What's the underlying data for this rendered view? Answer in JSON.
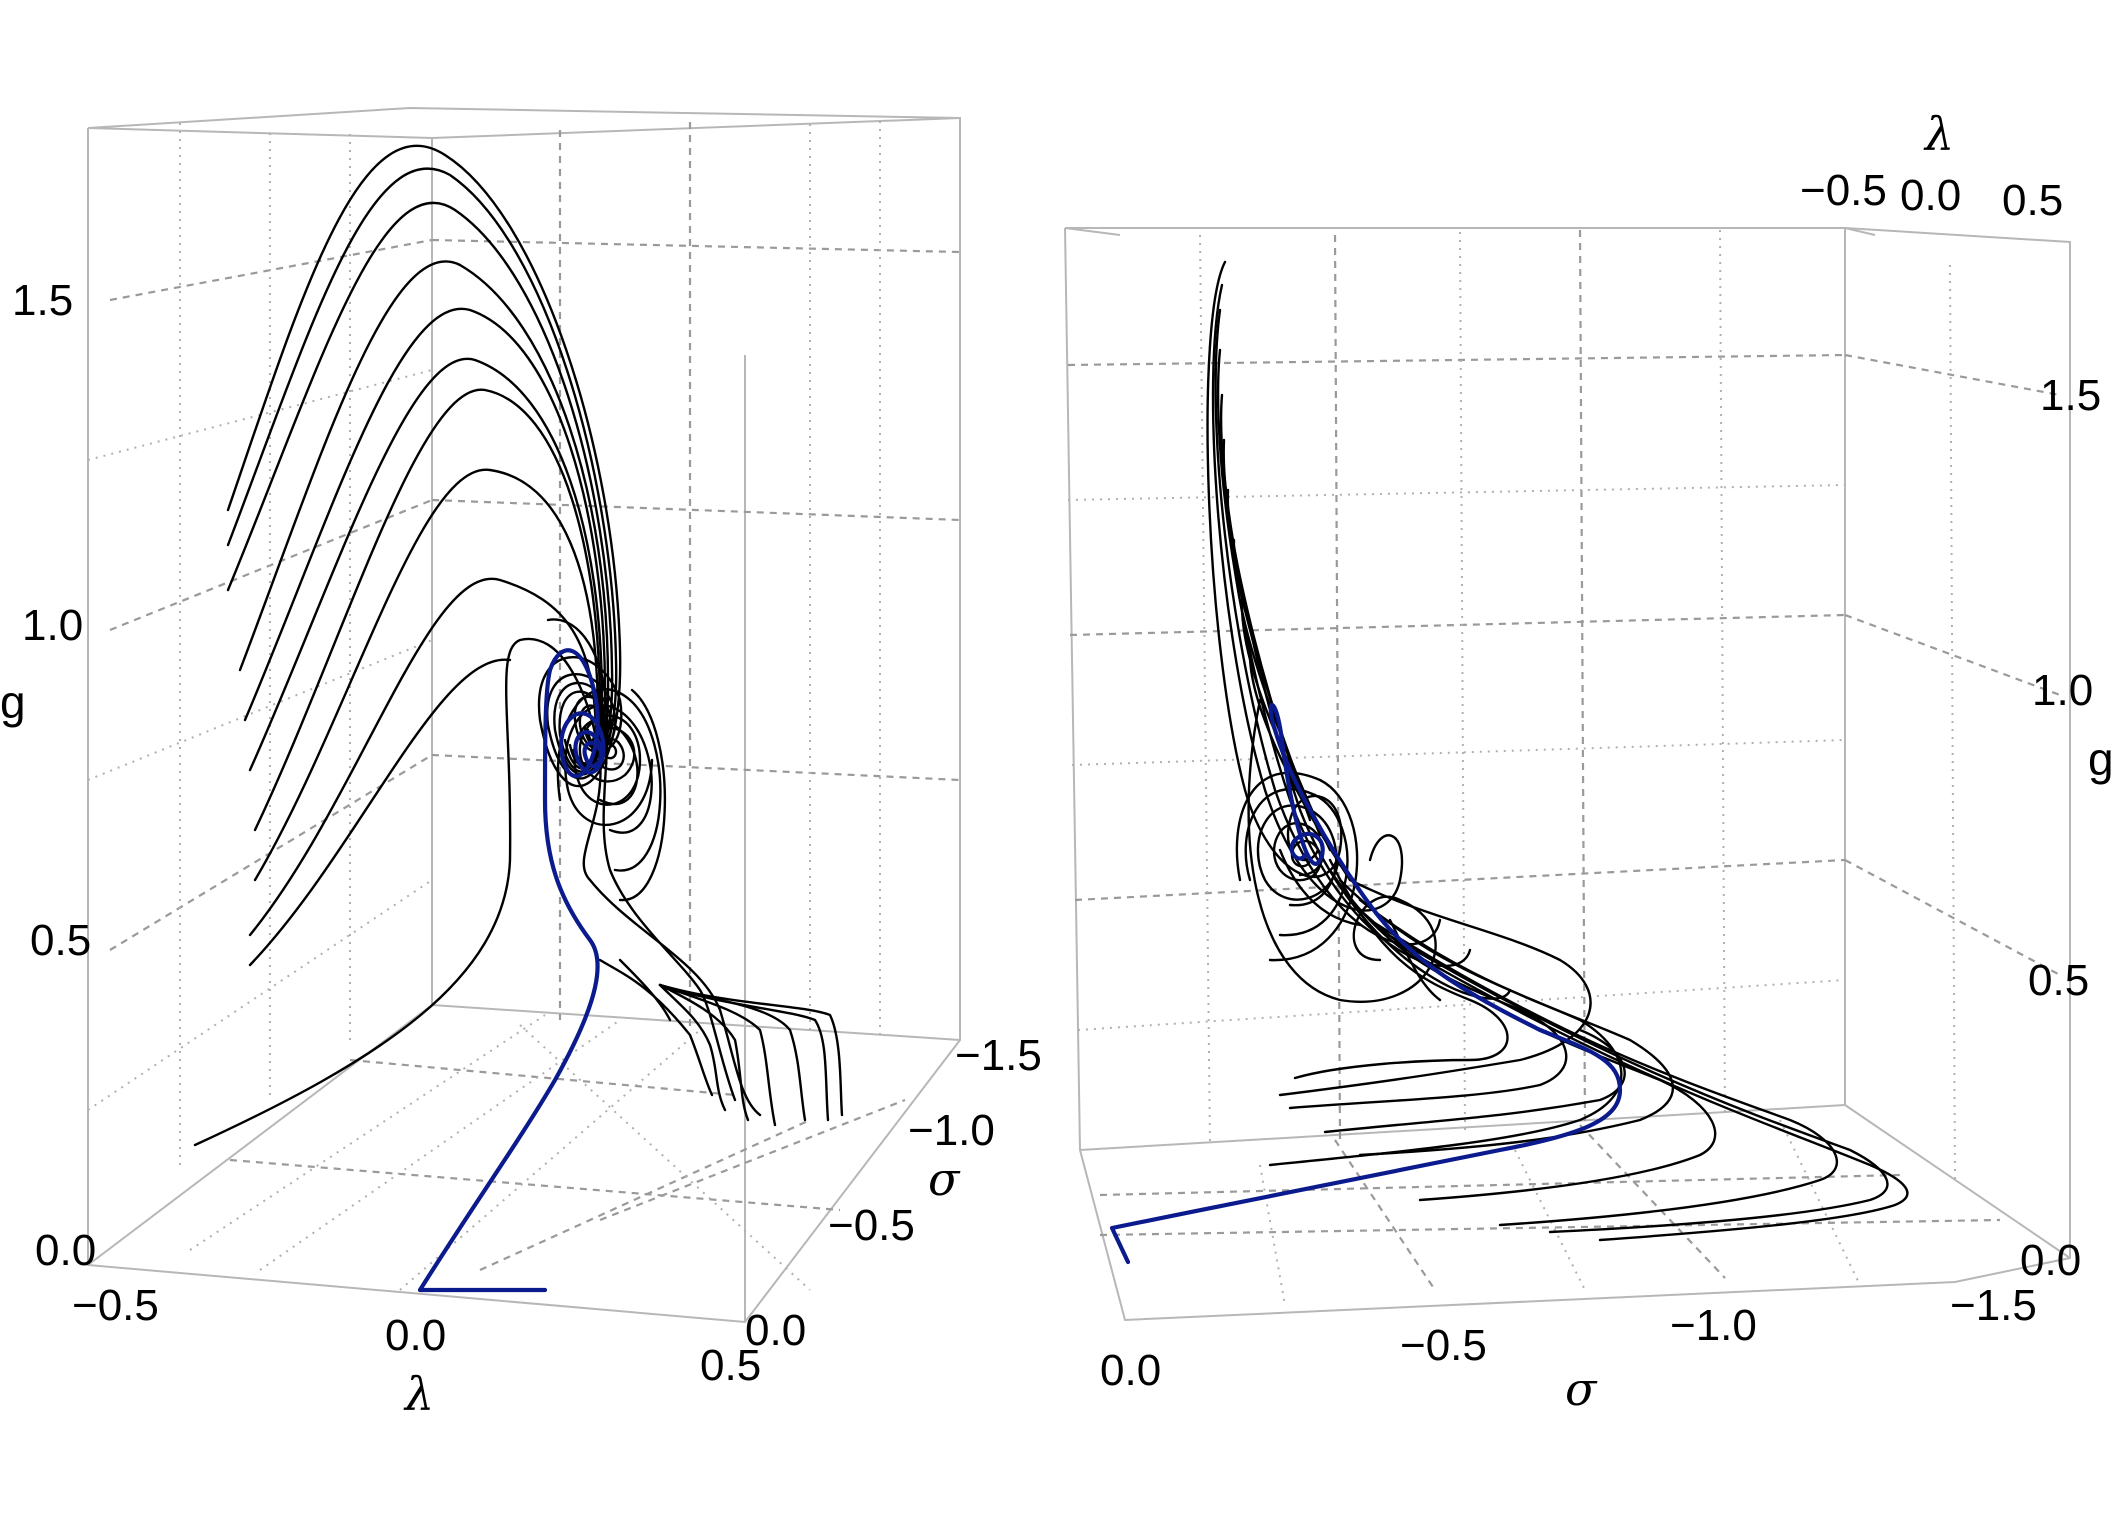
{
  "chart_data": [
    {
      "type": "line",
      "view": "perspective-left",
      "axes": {
        "lambda": {
          "label": "λ",
          "range": [
            -0.5,
            0.5
          ],
          "ticks": [
            "−0.5",
            "0.0",
            "0.5"
          ]
        },
        "sigma": {
          "label": "σ",
          "range": [
            0.0,
            -1.5
          ],
          "ticks": [
            "0.0",
            "−0.5",
            "−1.0",
            "−1.5"
          ]
        },
        "g": {
          "label": "g",
          "range": [
            0.0,
            1.7
          ],
          "ticks": [
            "0.0",
            "0.5",
            "1.0",
            "1.5"
          ]
        }
      },
      "grid": true,
      "series_colors": {
        "trajectories": "#000000",
        "highlighted": "#0b1a8c"
      },
      "attractor": {
        "lambda": 0.25,
        "sigma": -0.9,
        "g": 0.72
      }
    },
    {
      "type": "line",
      "view": "perspective-right",
      "axes": {
        "sigma": {
          "label": "σ",
          "range": [
            0.0,
            -1.5
          ],
          "ticks": [
            "0.0",
            "−0.5",
            "−1.0",
            "−1.5"
          ]
        },
        "lambda": {
          "label": "λ",
          "range": [
            -0.5,
            0.5
          ],
          "ticks": [
            "−0.5",
            "0.0",
            "0.5"
          ]
        },
        "g": {
          "label": "g",
          "range": [
            0.0,
            1.7
          ],
          "ticks": [
            "0.0",
            "0.5",
            "1.0",
            "1.5"
          ]
        }
      },
      "grid": true,
      "series_colors": {
        "trajectories": "#000000",
        "highlighted": "#0b1a8c"
      },
      "attractor": {
        "lambda": 0.25,
        "sigma": -0.9,
        "g": 0.72
      }
    }
  ]
}
